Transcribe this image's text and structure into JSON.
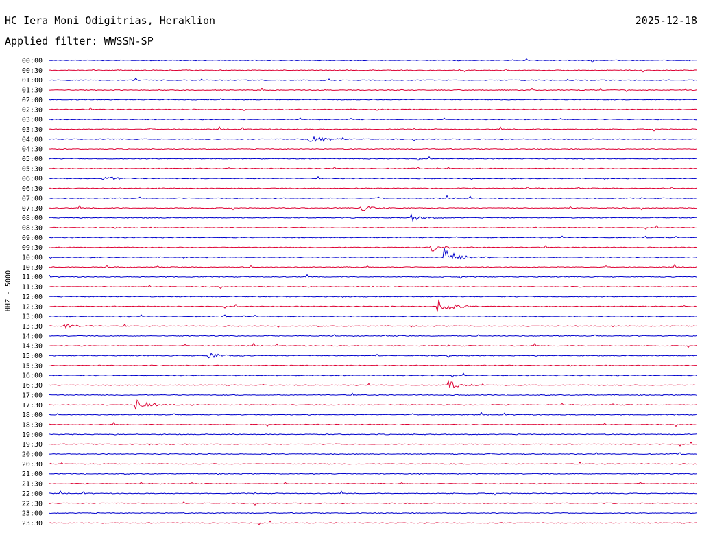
{
  "header": {
    "station": "HC Iera Moni Odigitrias, Heraklion",
    "date": "2025-12-18",
    "filter": "Applied filter: WWSSN-SP"
  },
  "chart_data": {
    "type": "line",
    "title": "HC Iera Moni Odigitrias, Heraklion",
    "ylabel": "HHZ - 5000",
    "colors": [
      "#0000cc",
      "#dd0033"
    ],
    "row_labels": [
      "00:00",
      "00:30",
      "01:00",
      "01:30",
      "02:00",
      "02:30",
      "03:00",
      "03:30",
      "04:00",
      "04:30",
      "05:00",
      "05:30",
      "06:00",
      "06:30",
      "07:00",
      "07:30",
      "08:00",
      "08:30",
      "09:00",
      "09:30",
      "10:00",
      "10:30",
      "11:00",
      "11:30",
      "12:00",
      "12:30",
      "13:00",
      "13:30",
      "14:00",
      "14:30",
      "15:00",
      "15:30",
      "16:00",
      "16:30",
      "17:00",
      "17:30",
      "18:00",
      "18:30",
      "19:00",
      "19:30",
      "20:00",
      "20:30",
      "21:00",
      "21:30",
      "22:00",
      "22:30",
      "23:00",
      "23:30"
    ],
    "minutes_per_row": 30,
    "events": [
      {
        "row": "04:00",
        "minute": 12.0,
        "amplitude": 1.0
      },
      {
        "row": "09:30",
        "minute": 17.7,
        "amplitude": 0.5
      },
      {
        "row": "10:00",
        "minute": 18.3,
        "amplitude": 1.0
      },
      {
        "row": "12:30",
        "minute": 18.0,
        "amplitude": 1.0
      },
      {
        "row": "17:30",
        "minute": 4.0,
        "amplitude": 0.7
      },
      {
        "row": "08:00",
        "minute": 16.8,
        "amplitude": 0.35
      },
      {
        "row": "07:30",
        "minute": 14.4,
        "amplitude": 0.3
      },
      {
        "row": "16:30",
        "minute": 18.5,
        "amplitude": 0.4
      },
      {
        "row": "15:00",
        "minute": 7.4,
        "amplitude": 0.3
      },
      {
        "row": "06:00",
        "minute": 2.5,
        "amplitude": 0.3
      },
      {
        "row": "13:30",
        "minute": 0.7,
        "amplitude": 0.3
      }
    ]
  }
}
